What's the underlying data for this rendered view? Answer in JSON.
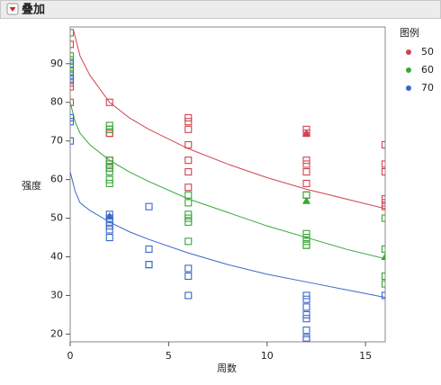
{
  "chart_data": {
    "type": "scatter",
    "title": "叠加",
    "x_label": "周数",
    "y_label": "强度",
    "legend_title": "图例",
    "xlim": [
      0,
      16
    ],
    "ylim": [
      18,
      99.5
    ],
    "xticks": [
      0,
      5,
      10,
      15
    ],
    "yticks": [
      20,
      30,
      40,
      50,
      60,
      70,
      80,
      90
    ],
    "legend_position": "right",
    "grid": false,
    "series": [
      {
        "name": "50",
        "color": "#d2434e",
        "x": [
          0,
          0,
          0,
          0,
          0,
          0,
          2,
          2,
          2,
          2,
          2,
          2,
          2,
          6,
          6,
          6,
          6,
          6,
          6,
          6,
          12,
          12,
          12,
          12,
          12,
          12,
          12,
          16,
          16,
          16,
          16,
          16,
          16
        ],
        "values": [
          95,
          91,
          88,
          85,
          84,
          80,
          80,
          73,
          72,
          72,
          65,
          64,
          63,
          76,
          75,
          73,
          69,
          65,
          62,
          58,
          73,
          72,
          65,
          64,
          62,
          59,
          56,
          69,
          64,
          62,
          55,
          54,
          53
        ],
        "highlighted": {
          "x": [
            12
          ],
          "values": [
            72
          ]
        },
        "fit": {
          "x": [
            0.15,
            0.5,
            1,
            2,
            3,
            4,
            6,
            8,
            10,
            12,
            14,
            16
          ],
          "values": [
            99,
            92,
            87,
            80,
            76,
            73,
            68,
            64,
            60.5,
            57.5,
            55,
            52.5
          ]
        }
      },
      {
        "name": "60",
        "color": "#3aa63a",
        "x": [
          0,
          0,
          0,
          0,
          0,
          0,
          2,
          2,
          2,
          2,
          2,
          2,
          2,
          2,
          6,
          6,
          6,
          6,
          6,
          6,
          12,
          12,
          12,
          12,
          12,
          12,
          16,
          16,
          16,
          16
        ],
        "values": [
          98,
          92,
          91,
          89,
          88,
          86,
          74,
          73,
          65,
          64,
          63,
          62,
          60,
          59,
          56,
          54,
          51,
          50,
          49,
          44,
          56,
          46,
          45,
          44,
          43,
          43,
          50,
          42,
          35,
          33
        ],
        "highlighted": {
          "x": [
            12,
            16
          ],
          "values": [
            54.5,
            40
          ]
        },
        "fit": {
          "x": [
            0,
            0.25,
            0.5,
            1,
            2,
            3,
            4,
            6,
            8,
            10,
            12,
            14,
            16
          ],
          "values": [
            80,
            75,
            72,
            69,
            65,
            62,
            59.5,
            55,
            51.5,
            48,
            45,
            42,
            39.5
          ]
        }
      },
      {
        "name": "70",
        "color": "#3a67c9",
        "x": [
          0,
          0,
          0,
          0,
          0,
          0,
          2,
          2,
          2,
          2,
          2,
          2,
          4,
          4,
          4,
          4,
          6,
          6,
          6,
          12,
          12,
          12,
          12,
          12,
          12,
          12,
          12,
          16
        ],
        "values": [
          90,
          87,
          86,
          76,
          75,
          70,
          51,
          50,
          49,
          48,
          47,
          45,
          53,
          42,
          38,
          38,
          37,
          35,
          30,
          30,
          29,
          27,
          25,
          24,
          21,
          19,
          18.5,
          30
        ],
        "highlighted": {
          "x": [
            2
          ],
          "values": [
            50.5
          ]
        },
        "fit": {
          "x": [
            0,
            0.25,
            0.5,
            1,
            2,
            3,
            4,
            6,
            8,
            10,
            12,
            14,
            16
          ],
          "values": [
            62,
            57,
            54,
            52,
            49,
            46.5,
            44.5,
            41,
            38,
            35.5,
            33.5,
            31.5,
            29.5
          ]
        }
      }
    ]
  }
}
